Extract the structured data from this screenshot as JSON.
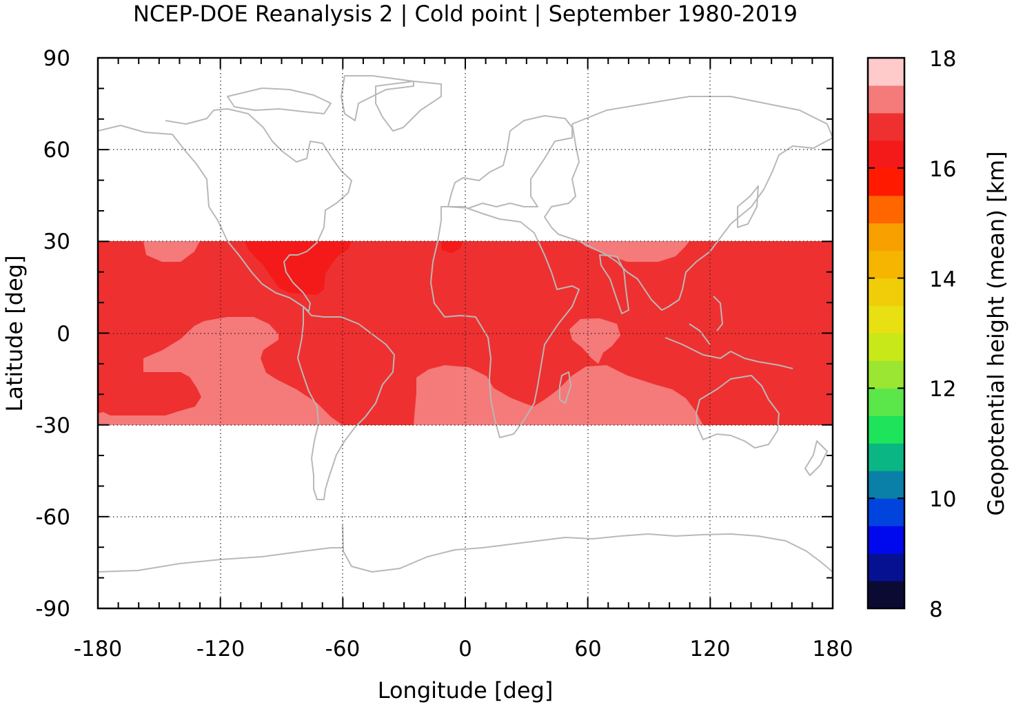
{
  "title": "NCEP-DOE Reanalysis 2 | Cold point | September 1980-2019",
  "map": {
    "xlabel": "Longitude [deg]",
    "ylabel": "Latitude [deg]",
    "xlim": [
      -180,
      180
    ],
    "ylim": [
      -90,
      90
    ],
    "xticks": [
      "-180",
      "-120",
      "-60",
      "0",
      "60",
      "120",
      "180"
    ],
    "yticks": [
      "90",
      "60",
      "30",
      "0",
      "-30",
      "-60",
      "-90"
    ],
    "grid": "dotted",
    "coastline_color": "#b8b8b8",
    "data_lat_range": [
      -30,
      30
    ]
  },
  "colorbar": {
    "label": "Geopotential height (mean) [km]",
    "range": [
      8,
      18
    ],
    "ticks": [
      "18",
      "16",
      "14",
      "12",
      "10",
      "8"
    ],
    "colors": [
      "#0a0a33",
      "#061192",
      "#0008ee",
      "#0044dd",
      "#0a7fa8",
      "#0ab683",
      "#1de45a",
      "#5be64a",
      "#9ae632",
      "#c8e81a",
      "#e8e012",
      "#f0cd08",
      "#f5b500",
      "#f8a000",
      "#ff6600",
      "#ff1a00",
      "#f41a1a",
      "#ef3030",
      "#f57a7a",
      "#fecaca"
    ]
  },
  "legend_values": {
    "red": "#ef3030",
    "salmon": "#f57a7a",
    "deep_red": "#f41a1a"
  }
}
